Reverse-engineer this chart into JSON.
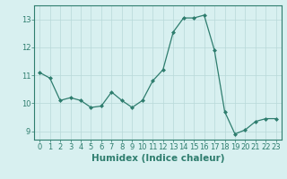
{
  "x": [
    0,
    1,
    2,
    3,
    4,
    5,
    6,
    7,
    8,
    9,
    10,
    11,
    12,
    13,
    14,
    15,
    16,
    17,
    18,
    19,
    20,
    21,
    22,
    23
  ],
  "y": [
    11.1,
    10.9,
    10.1,
    10.2,
    10.1,
    9.85,
    9.9,
    10.4,
    10.1,
    9.85,
    10.1,
    10.8,
    11.2,
    12.55,
    13.05,
    13.05,
    13.15,
    11.9,
    9.7,
    8.9,
    9.05,
    9.35,
    9.45,
    9.45
  ],
  "xlabel": "Humidex (Indice chaleur)",
  "ylim": [
    8.7,
    13.5
  ],
  "xlim": [
    -0.5,
    23.5
  ],
  "yticks": [
    9,
    10,
    11,
    12,
    13
  ],
  "xticks": [
    0,
    1,
    2,
    3,
    4,
    5,
    6,
    7,
    8,
    9,
    10,
    11,
    12,
    13,
    14,
    15,
    16,
    17,
    18,
    19,
    20,
    21,
    22,
    23
  ],
  "line_color": "#2e7d6e",
  "marker_color": "#2e7d6e",
  "bg_color": "#d8f0f0",
  "grid_color": "#b8d8d8",
  "tick_fontsize": 6,
  "label_fontsize": 7.5
}
